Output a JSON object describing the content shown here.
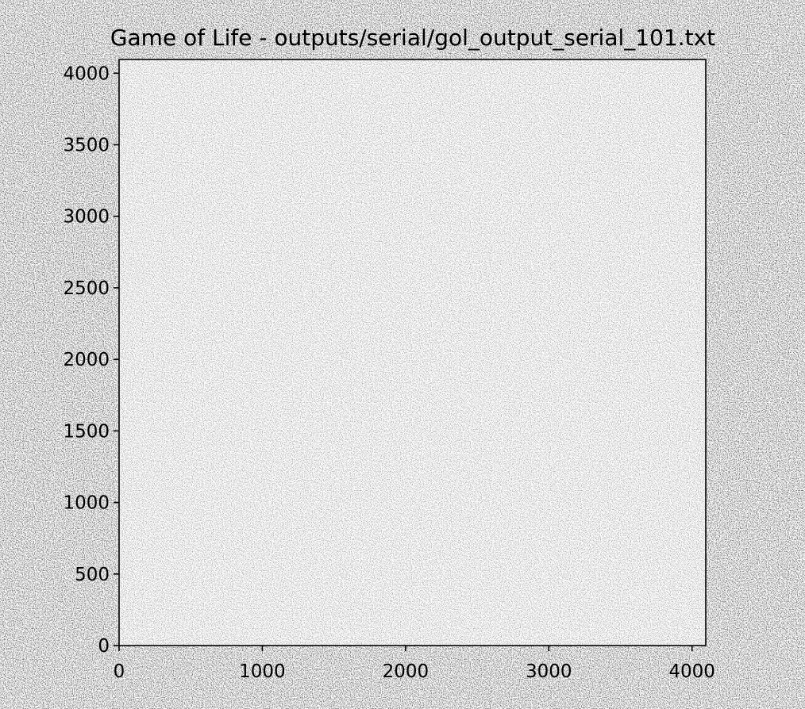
{
  "chart_data": {
    "type": "heatmap",
    "title": "Game of Life - outputs/serial/gol_output_serial_101.txt",
    "xlabel": "",
    "ylabel": "",
    "xlim": [
      0,
      4096
    ],
    "ylim": [
      0,
      4096
    ],
    "x_ticks": [
      0,
      1000,
      2000,
      3000,
      4000
    ],
    "y_ticks": [
      0,
      500,
      1000,
      1500,
      2000,
      2500,
      3000,
      3500,
      4000
    ],
    "grid_size": [
      4096,
      4096
    ],
    "colormap": [
      "#ffffff",
      "#000000"
    ],
    "cell_states": [
      "dead",
      "alive"
    ],
    "pattern": "random scattered live cells across the full grid",
    "grid": false,
    "legend": "none"
  }
}
